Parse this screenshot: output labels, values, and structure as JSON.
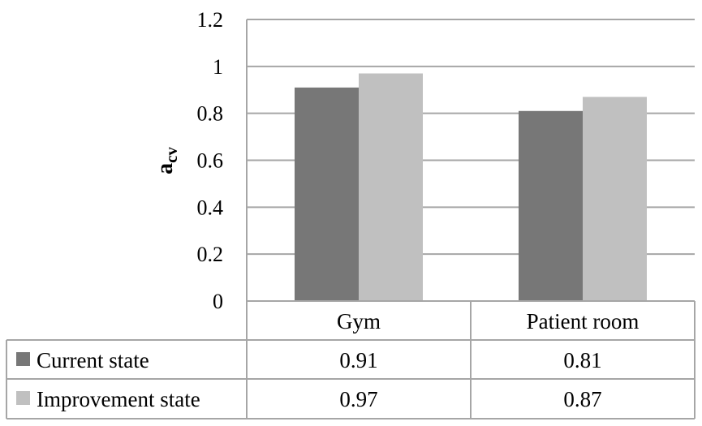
{
  "chart_data": {
    "type": "bar",
    "categories": [
      "Gym",
      "Patient room"
    ],
    "series": [
      {
        "name": "Current state",
        "values": [
          0.91,
          0.81
        ],
        "color": "#777777",
        "display": [
          "0.91",
          "0.81"
        ]
      },
      {
        "name": "Improvement state",
        "values": [
          0.97,
          0.87
        ],
        "color": "#c0c0c0",
        "display": [
          "0.97",
          "0.87"
        ]
      }
    ],
    "ylabel_main": "a",
    "ylabel_sub": "cv",
    "ylim": [
      0,
      1.2
    ],
    "yticks": [
      "0",
      "0.2",
      "0.4",
      "0.6",
      "0.8",
      "1",
      "1.2"
    ],
    "grid": true,
    "legend": "data-table"
  }
}
